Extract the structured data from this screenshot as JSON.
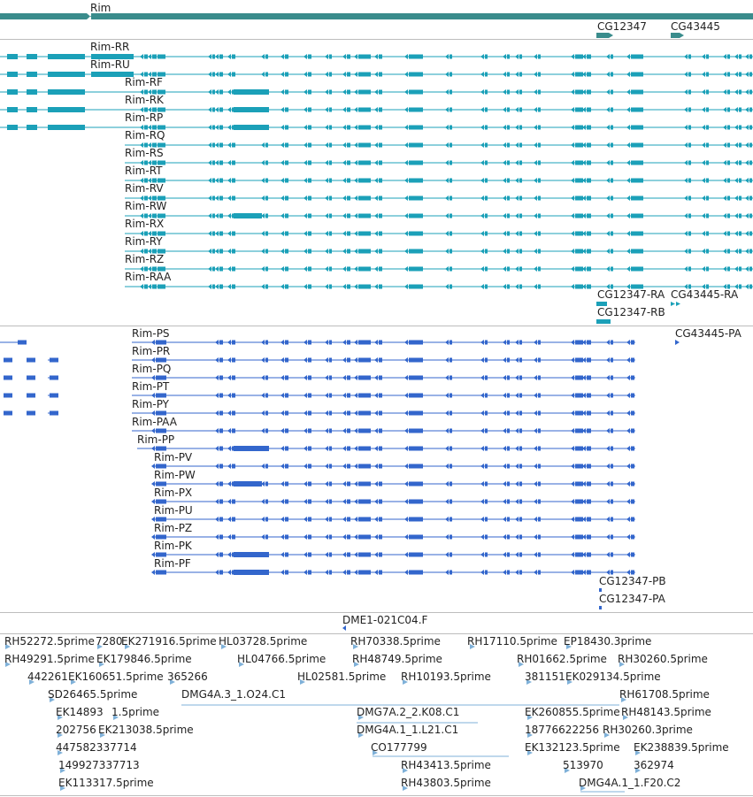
{
  "tracks": {
    "gene": {
      "labels": [
        "Rim",
        "CG12347",
        "CG43445"
      ],
      "color": "#3a8c8c"
    },
    "transcripts": {
      "color": "#1ba0b8",
      "rim_labels": [
        "Rim-RR",
        "Rim-RU",
        "Rim-RF",
        "Rim-RK",
        "Rim-RP",
        "Rim-RQ",
        "Rim-RS",
        "Rim-RT",
        "Rim-RV",
        "Rim-RW",
        "Rim-RX",
        "Rim-RY",
        "Rim-RZ",
        "Rim-RAA"
      ],
      "other_labels": [
        "CG12347-RA",
        "CG43445-RA",
        "CG12347-RB"
      ]
    },
    "proteins": {
      "color": "#3366cc",
      "rim_labels": [
        "Rim-PS",
        "Rim-PR",
        "Rim-PQ",
        "Rim-PT",
        "Rim-PY",
        "Rim-PAA",
        "Rim-PP",
        "Rim-PV",
        "Rim-PW",
        "Rim-PX",
        "Rim-PU",
        "Rim-PZ",
        "Rim-PK",
        "Rim-PF"
      ],
      "other_labels": [
        "CG43445-PA",
        "CG12347-PB",
        "CG12347-PA"
      ]
    },
    "clone": {
      "color": "#3366cc",
      "label": "DME1-021C04.F"
    },
    "ests": {
      "color": "#7fb1d9",
      "labels": [
        "RH52272.5prime",
        "7280",
        "EK271916.5prime",
        "HL03728.5prime",
        "RH70338.5prime",
        "RH17110.5prime",
        "EP18430.3prime",
        "RH49291.5prime",
        "EK179846.5prime",
        "HL04766.5prime",
        "RH48749.5prime",
        "RH01662.5prime",
        "RH30260.5prime",
        "442261",
        "EK160651.5prime",
        "365266",
        "HL02581.5prime",
        "RH10193.5prime",
        "381151",
        "EK029134.5prime",
        "SD26465.5prime",
        "RH61708.5prime",
        "DMG4A.3_1.O24.C1",
        "EK14893",
        "1.5prime",
        "DMG7A.2_2.K08.C1",
        "EK260855.5prime",
        "RH48143.5prime",
        "202756",
        "EK213038.5prime",
        "DMG4A.1_1.L21.C1",
        "18776622256",
        "RH30260.3prime",
        "447582337714",
        "CO177799",
        "EK132123.5prime",
        "EK238839.5prime",
        "149927337713",
        "RH43413.5prime",
        "513970",
        "362974",
        "EK113317.5prime",
        "RH43803.5prime",
        "DMG4A.1_1.F20.C2"
      ]
    }
  }
}
